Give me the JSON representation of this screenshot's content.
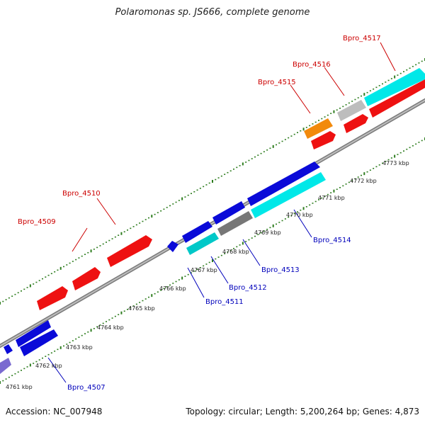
{
  "title": "Polaromonas sp. JS666, complete genome",
  "footer": {
    "accession": "Accession: NC_007948",
    "summary": "Topology: circular; Length: 5,200,264 bp; Genes: 4,873"
  },
  "colors": {
    "backbone": "#8c8c8c",
    "tick_green": "#2e7d1f",
    "blue": "#0a0ad8",
    "red": "#ee1111",
    "cyan": "#00e8e8",
    "teal": "#00c8c8",
    "gray": "#777777",
    "light_gray": "#bdbdbd",
    "orange": "#f28a0c",
    "purple": "#7a6ad0",
    "label_red": "#cc0000",
    "label_blue": "#0000bb"
  },
  "kbp_labels": [
    "4761 kbp",
    "4762 kbp",
    "4763 kbp",
    "4764 kbp",
    "4765 kbp",
    "4766 kbp",
    "4767 kbp",
    "4768 kbp",
    "4769 kbp",
    "4770 kbp",
    "4771 kbp",
    "4772 kbp",
    "4773 kbp"
  ],
  "gene_labels_top": [
    "Bpro_4509",
    "Bpro_4510",
    "Bpro_4515",
    "Bpro_4516",
    "Bpro_4517"
  ],
  "gene_labels_bottom": [
    "Bpro_4507",
    "Bpro_4511",
    "Bpro_4512",
    "Bpro_4513",
    "Bpro_4514"
  ]
}
